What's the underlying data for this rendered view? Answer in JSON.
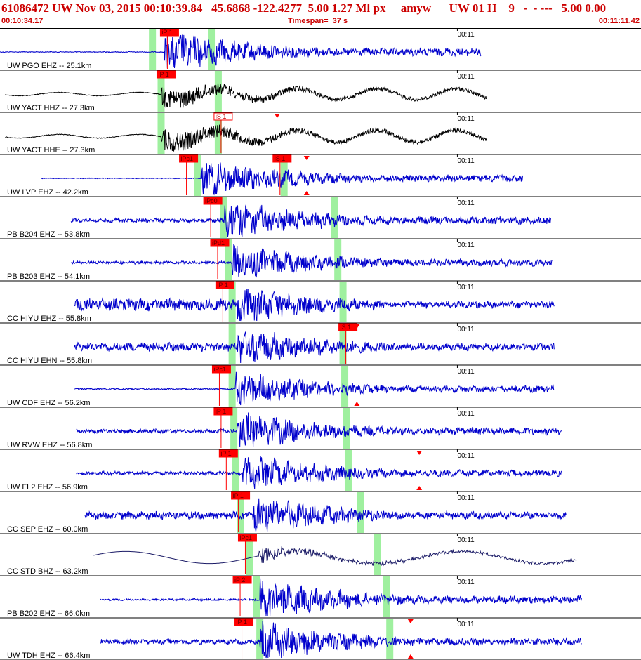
{
  "header": {
    "title": "61086472 UW Nov 03, 2015 00:10:39.84   45.6868 -122.4277  5.00 1.27 Ml px     amyw      UW 01 H    9   -  - ---   5.00 0.00",
    "start_time": "00:10:34.17",
    "timespan": "Timespan=  37 s",
    "end_time": "00:11:11.42"
  },
  "colors": {
    "trace_blue": "#0000cc",
    "trace_black": "#000000",
    "trace_navy": "#1a1a66",
    "pick_red": "#ff0000",
    "window_green": "#9ff09f",
    "header_red": "#cc0000"
  },
  "chart_data": {
    "type": "line",
    "time_axis": {
      "start": "00:10:34.17",
      "end": "00:11:11.42",
      "span_s": 37,
      "tick_label": "00:11"
    },
    "traces": [
      {
        "label": "UW PGO EHZ -- 25.1km",
        "color": "blue",
        "start_s": 0.0,
        "end_s": 27.8,
        "onset_s": 9.5,
        "amp": 0.45,
        "pre": 0.02,
        "kind": "eq",
        "picks": [
          {
            "label": "iP 1",
            "t": 9.5,
            "style": "filled"
          }
        ],
        "windows": [
          8.8,
          12.2
        ],
        "markers": []
      },
      {
        "label": "UW YACT HHZ -- 27.3km",
        "color": "black",
        "start_s": 0.3,
        "end_s": 28.1,
        "onset_s": 9.3,
        "amp": 0.32,
        "pre": 0.08,
        "kind": "wavy",
        "picks": [
          {
            "label": "iP 1",
            "t": 9.3,
            "style": "filled"
          }
        ],
        "windows": [
          9.3,
          12.6
        ],
        "markers": []
      },
      {
        "label": "UW YACT HHE -- 27.3km",
        "color": "black",
        "start_s": 0.3,
        "end_s": 28.1,
        "onset_s": 9.3,
        "amp": 0.35,
        "pre": 0.08,
        "kind": "wavy",
        "picks": [
          {
            "label": "iS 1",
            "t": 12.6,
            "style": "outline"
          }
        ],
        "windows": [
          9.3,
          12.6
        ],
        "markers": [
          {
            "t": 16.0,
            "dir": "down"
          }
        ]
      },
      {
        "label": "UW LVP EHZ -- 42.2km",
        "color": "blue",
        "start_s": 2.4,
        "end_s": 30.2,
        "onset_s": 11.6,
        "amp": 0.4,
        "pre": 0.02,
        "kind": "eq",
        "picks": [
          {
            "label": "iPc1",
            "t": 10.6,
            "style": "filled"
          },
          {
            "label": "iS 1",
            "t": 16.0,
            "style": "filled"
          }
        ],
        "windows": [
          11.4,
          16.4
        ],
        "markers": [
          {
            "t": 17.7,
            "dir": "down"
          },
          {
            "t": 17.7,
            "dir": "up"
          }
        ]
      },
      {
        "label": "PB B204 EHZ -- 53.8km",
        "color": "blue",
        "start_s": 4.1,
        "end_s": 31.8,
        "onset_s": 12.9,
        "amp": 0.42,
        "pre": 0.1,
        "kind": "eq",
        "picks": [
          {
            "label": "iPc0",
            "t": 12.0,
            "style": "filled"
          }
        ],
        "windows": [
          12.9,
          19.3
        ],
        "markers": []
      },
      {
        "label": "PB B203 EHZ -- 54.1km",
        "color": "blue",
        "start_s": 4.1,
        "end_s": 31.9,
        "onset_s": 13.4,
        "amp": 0.38,
        "pre": 0.08,
        "kind": "eq",
        "picks": [
          {
            "label": "iPd1",
            "t": 12.4,
            "style": "filled"
          }
        ],
        "windows": [
          13.2,
          19.5
        ],
        "markers": []
      },
      {
        "label": "CC HIYU EHZ -- 55.8km",
        "color": "blue",
        "start_s": 4.3,
        "end_s": 32.0,
        "onset_s": 13.7,
        "amp": 0.4,
        "pre": 0.3,
        "kind": "eq",
        "picks": [
          {
            "label": "iP 1",
            "t": 12.7,
            "style": "filled"
          }
        ],
        "windows": [
          13.4,
          19.8
        ],
        "markers": []
      },
      {
        "label": "CC HIYU EHN -- 55.8km",
        "color": "blue",
        "start_s": 4.3,
        "end_s": 32.0,
        "onset_s": 13.7,
        "amp": 0.4,
        "pre": 0.22,
        "kind": "eq",
        "picks": [
          {
            "label": "iS 1",
            "t": 19.8,
            "style": "filled"
          }
        ],
        "windows": [
          13.4,
          19.8
        ],
        "markers": [
          {
            "t": 20.6,
            "dir": "down"
          }
        ]
      },
      {
        "label": "UW CDF EHZ -- 56.2km",
        "color": "blue",
        "start_s": 4.3,
        "end_s": 32.0,
        "onset_s": 13.6,
        "amp": 0.36,
        "pre": 0.04,
        "kind": "eq",
        "picks": [
          {
            "label": "iPc1",
            "t": 12.5,
            "style": "filled"
          }
        ],
        "windows": [
          13.4,
          19.9
        ],
        "markers": [
          {
            "t": 20.6,
            "dir": "up"
          }
        ]
      },
      {
        "label": "UW RVW EHZ -- 56.8km",
        "color": "blue",
        "start_s": 4.4,
        "end_s": 32.4,
        "onset_s": 13.7,
        "amp": 0.4,
        "pre": 0.1,
        "kind": "eq",
        "picks": [
          {
            "label": "iP 1",
            "t": 12.6,
            "style": "filled"
          }
        ],
        "windows": [
          13.5,
          20.0
        ],
        "markers": []
      },
      {
        "label": "UW FL2 EHZ -- 56.9km",
        "color": "blue",
        "start_s": 4.4,
        "end_s": 32.4,
        "onset_s": 14.0,
        "amp": 0.38,
        "pre": 0.1,
        "kind": "eq",
        "picks": [
          {
            "label": "iP 1",
            "t": 12.9,
            "style": "filled"
          }
        ],
        "windows": [
          13.6,
          20.1
        ],
        "markers": [
          {
            "t": 24.2,
            "dir": "down"
          },
          {
            "t": 24.2,
            "dir": "up"
          }
        ]
      },
      {
        "label": "CC SEP EHZ -- 60.0km",
        "color": "blue",
        "start_s": 4.9,
        "end_s": 32.7,
        "onset_s": 14.6,
        "amp": 0.4,
        "pre": 0.2,
        "kind": "eq",
        "picks": [
          {
            "label": "iP 1",
            "t": 13.6,
            "style": "filled"
          }
        ],
        "windows": [
          13.9,
          20.8
        ],
        "markers": []
      },
      {
        "label": "CC STD BHZ -- 63.2km",
        "color": "navy",
        "start_s": 5.4,
        "end_s": 33.3,
        "onset_s": 14.9,
        "amp": 0.32,
        "pre": 0.02,
        "kind": "long",
        "picks": [
          {
            "label": "iPc1",
            "t": 14.0,
            "style": "filled"
          }
        ],
        "windows": [
          14.4,
          21.8
        ],
        "markers": []
      },
      {
        "label": "PB B202 EHZ -- 66.0km",
        "color": "blue",
        "start_s": 5.8,
        "end_s": 33.6,
        "onset_s": 15.0,
        "amp": 0.42,
        "pre": 0.05,
        "kind": "eq",
        "picks": [
          {
            "label": "iP 2",
            "t": 13.7,
            "style": "filled"
          }
        ],
        "windows": [
          14.8,
          22.3
        ],
        "markers": []
      },
      {
        "label": "UW TDH EHZ -- 66.4km",
        "color": "blue",
        "start_s": 5.8,
        "end_s": 33.6,
        "onset_s": 15.0,
        "amp": 0.42,
        "pre": 0.12,
        "kind": "eq",
        "picks": [
          {
            "label": "iP 1",
            "t": 13.8,
            "style": "filled"
          }
        ],
        "windows": [
          15.0,
          22.5
        ],
        "markers": [
          {
            "t": 23.7,
            "dir": "down"
          },
          {
            "t": 23.7,
            "dir": "up"
          }
        ]
      }
    ]
  }
}
